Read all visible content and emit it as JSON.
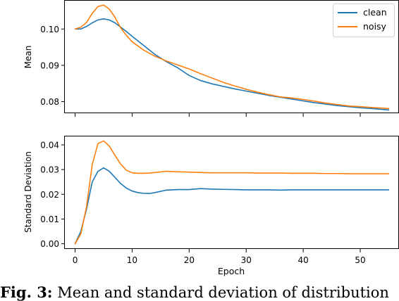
{
  "chart_data": [
    {
      "type": "line",
      "xlabel": "",
      "ylabel": "Mean",
      "xlim": [
        -1.8,
        56.8
      ],
      "ylim": [
        0.0768,
        0.1078
      ],
      "xticks": [
        0,
        10,
        20,
        30,
        40,
        50
      ],
      "xtick_labels_visible": false,
      "yticks": [
        0.08,
        0.09,
        0.1
      ],
      "ytick_labels": [
        "0.08",
        "0.09",
        "0.10"
      ],
      "grid": false,
      "legend": "top-right",
      "series": [
        {
          "name": "clean",
          "color": "#1f77b4",
          "x": [
            0,
            1,
            2,
            3,
            4,
            5,
            6,
            7,
            8,
            9,
            10,
            12,
            14,
            16,
            18,
            20,
            22,
            24,
            26,
            28,
            30,
            32,
            34,
            36,
            38,
            40,
            42,
            44,
            46,
            48,
            50,
            52,
            55
          ],
          "y": [
            0.1,
            0.1,
            0.1007,
            0.1017,
            0.1025,
            0.1028,
            0.1025,
            0.1017,
            0.1005,
            0.0993,
            0.098,
            0.0955,
            0.093,
            0.091,
            0.0893,
            0.0872,
            0.0858,
            0.0849,
            0.0842,
            0.0835,
            0.0829,
            0.0823,
            0.0817,
            0.0812,
            0.0807,
            0.0802,
            0.0797,
            0.0793,
            0.0789,
            0.0786,
            0.0783,
            0.0781,
            0.0777
          ]
        },
        {
          "name": "noisy",
          "color": "#ff7f0e",
          "x": [
            0,
            1,
            2,
            3,
            4,
            5,
            6,
            7,
            8,
            9,
            10,
            12,
            14,
            16,
            18,
            20,
            22,
            24,
            26,
            28,
            30,
            32,
            34,
            36,
            38,
            40,
            42,
            44,
            46,
            48,
            50,
            52,
            55
          ],
          "y": [
            0.1,
            0.1005,
            0.1018,
            0.1043,
            0.1062,
            0.1066,
            0.1055,
            0.1032,
            0.1003,
            0.0982,
            0.0965,
            0.0942,
            0.0925,
            0.0912,
            0.0901,
            0.089,
            0.0877,
            0.0865,
            0.0853,
            0.0843,
            0.0834,
            0.0826,
            0.0819,
            0.0813,
            0.081,
            0.0806,
            0.0801,
            0.0796,
            0.0792,
            0.0788,
            0.0786,
            0.0784,
            0.0781
          ]
        }
      ]
    },
    {
      "type": "line",
      "xlabel": "Epoch",
      "ylabel": "Standard Deviation",
      "xlim": [
        -1.8,
        56.8
      ],
      "ylim": [
        -0.0021,
        0.0434
      ],
      "xticks": [
        0,
        10,
        20,
        30,
        40,
        50
      ],
      "xtick_labels": [
        "0",
        "10",
        "20",
        "30",
        "40",
        "50"
      ],
      "yticks": [
        0.0,
        0.01,
        0.02,
        0.03,
        0.04
      ],
      "ytick_labels": [
        "0.00",
        "0.01",
        "0.02",
        "0.03",
        "0.04"
      ],
      "grid": false,
      "series": [
        {
          "name": "clean",
          "color": "#1f77b4",
          "x": [
            0,
            1,
            2,
            3,
            4,
            5,
            6,
            7,
            8,
            9,
            10,
            11,
            12,
            13,
            14,
            16,
            18,
            20,
            22,
            24,
            26,
            28,
            30,
            32,
            34,
            36,
            38,
            40,
            42,
            44,
            46,
            48,
            50,
            52,
            55
          ],
          "y": [
            0.0,
            0.005,
            0.014,
            0.025,
            0.0293,
            0.0307,
            0.0293,
            0.0268,
            0.0243,
            0.0225,
            0.0213,
            0.0207,
            0.0204,
            0.0203,
            0.0207,
            0.0217,
            0.0219,
            0.0219,
            0.0223,
            0.0221,
            0.022,
            0.0219,
            0.0218,
            0.0218,
            0.0218,
            0.0217,
            0.0218,
            0.0218,
            0.0218,
            0.0218,
            0.0218,
            0.0218,
            0.0218,
            0.0218,
            0.0218
          ]
        },
        {
          "name": "noisy",
          "color": "#ff7f0e",
          "x": [
            0,
            1,
            2,
            3,
            4,
            5,
            6,
            7,
            8,
            9,
            10,
            11,
            12,
            13,
            14,
            16,
            18,
            20,
            22,
            24,
            26,
            28,
            30,
            32,
            34,
            36,
            38,
            40,
            42,
            44,
            46,
            48,
            50,
            52,
            55
          ],
          "y": [
            0.0,
            0.004,
            0.015,
            0.032,
            0.0405,
            0.0416,
            0.0395,
            0.0357,
            0.0322,
            0.0297,
            0.0287,
            0.0285,
            0.0285,
            0.0286,
            0.0288,
            0.0293,
            0.0291,
            0.029,
            0.0288,
            0.0287,
            0.0287,
            0.0287,
            0.0287,
            0.0286,
            0.0286,
            0.0286,
            0.0285,
            0.0285,
            0.0285,
            0.0284,
            0.0284,
            0.0283,
            0.0283,
            0.0283,
            0.0283
          ]
        }
      ]
    }
  ],
  "caption": {
    "label": "Fig. 3:",
    "text": " Mean and standard deviation of distribution"
  }
}
